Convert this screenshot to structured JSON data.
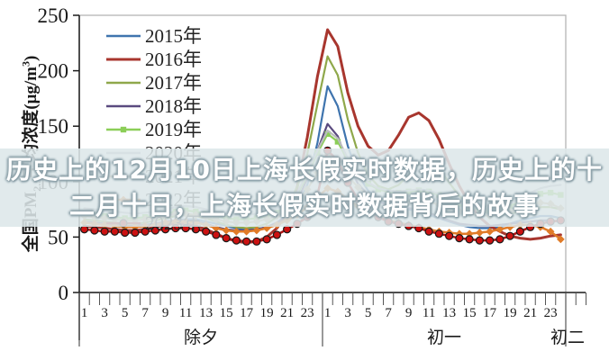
{
  "banner": {
    "line1": "历史上的12月10日上海长假实时数据，历史上的十",
    "line2": "二月十日，上海长假实时数据背后的故事"
  },
  "chart_data": {
    "type": "line",
    "title": "",
    "ylabel": "全国PM2.5平均浓度(μg/m³)",
    "ylabel_parts": {
      "prefix": "全国PM",
      "sub": "2.5",
      "mid": "平均浓度(μg/m",
      "sup": "3",
      "suffix": ")"
    },
    "ylim": [
      0,
      250
    ],
    "yticks": [
      0,
      50,
      100,
      150,
      200,
      250
    ],
    "hours_per_day": 24,
    "hour_tick_labels": [
      "1",
      "3",
      "5",
      "7",
      "9",
      "11",
      "13",
      "15",
      "17",
      "19",
      "21",
      "23"
    ],
    "day_labels": [
      "除夕",
      "初一",
      "初二"
    ],
    "grid": false,
    "legend_position": "upper-left-inside",
    "axis_color": "#1a1a1a",
    "box_color": "#b5b5b5",
    "series": [
      {
        "name": "2015年",
        "color": "#3f74ae",
        "marker": "none",
        "width": 2.2,
        "values": [
          63,
          62,
          61,
          60,
          59,
          59,
          60,
          61,
          63,
          65,
          66,
          66,
          64,
          62,
          60,
          58,
          57,
          57,
          59,
          62,
          68,
          78,
          97,
          135,
          186,
          168,
          132,
          106,
          92,
          84,
          79,
          77,
          75,
          73,
          70,
          67,
          64,
          61,
          59,
          58,
          58,
          59,
          62,
          65,
          67,
          69,
          69,
          67
        ]
      },
      {
        "name": "2016年",
        "color": "#a8362e",
        "marker": "none",
        "width": 3,
        "values": [
          60,
          59,
          58,
          57,
          56,
          56,
          57,
          59,
          61,
          62,
          62,
          60,
          57,
          53,
          49,
          46,
          45,
          46,
          50,
          58,
          72,
          95,
          140,
          195,
          237,
          222,
          180,
          150,
          132,
          124,
          128,
          142,
          158,
          162,
          155,
          138,
          116,
          96,
          80,
          68,
          60,
          55,
          51,
          49,
          48,
          49,
          51,
          52
        ]
      },
      {
        "name": "2017年",
        "color": "#8fa84b",
        "marker": "none",
        "width": 2.2,
        "values": [
          66,
          65,
          64,
          63,
          62,
          62,
          63,
          65,
          67,
          69,
          70,
          69,
          67,
          64,
          61,
          59,
          58,
          59,
          62,
          68,
          78,
          95,
          125,
          170,
          213,
          196,
          156,
          126,
          106,
          96,
          93,
          97,
          106,
          116,
          119,
          112,
          99,
          87,
          79,
          74,
          71,
          70,
          71,
          73,
          75,
          77,
          77,
          75
        ]
      },
      {
        "name": "2018年",
        "color": "#5a4a7f",
        "marker": "none",
        "width": 2.2,
        "values": [
          64,
          63,
          62,
          61,
          60,
          60,
          61,
          62,
          64,
          65,
          65,
          64,
          62,
          59,
          57,
          56,
          56,
          57,
          59,
          63,
          70,
          82,
          103,
          128,
          152,
          141,
          116,
          98,
          88,
          82,
          79,
          77,
          76,
          75,
          72,
          68,
          65,
          62,
          61,
          60,
          60,
          61,
          62,
          63,
          64,
          65,
          65,
          64
        ]
      },
      {
        "name": "2019年",
        "color": "#8cce58",
        "marker": "square",
        "width": 2.2,
        "values": [
          71,
          70,
          69,
          68,
          67,
          67,
          68,
          69,
          71,
          73,
          74,
          73,
          71,
          69,
          67,
          66,
          66,
          67,
          69,
          72,
          78,
          88,
          106,
          126,
          143,
          136,
          119,
          106,
          98,
          93,
          91,
          90,
          91,
          92,
          91,
          88,
          84,
          80,
          77,
          75,
          74,
          75,
          78,
          82,
          86,
          89,
          90,
          88
        ]
      },
      {
        "name": "2020年",
        "color": "#b9bcbd",
        "marker": "none",
        "width": 2.2,
        "values": [
          76,
          75,
          74,
          73,
          72,
          71,
          72,
          73,
          75,
          77,
          78,
          77,
          75,
          73,
          71,
          70,
          70,
          71,
          73,
          76,
          81,
          90,
          108,
          128,
          146,
          139,
          121,
          108,
          99,
          94,
          92,
          91,
          92,
          93,
          92,
          89,
          85,
          81,
          78,
          76,
          75,
          76,
          80,
          85,
          90,
          94,
          96,
          97
        ]
      },
      {
        "name": "2021年",
        "color": "#c9b18c",
        "marker": "diamond",
        "width": 2,
        "values": [
          69,
          68,
          67,
          66,
          65,
          65,
          66,
          67,
          69,
          71,
          71,
          70,
          68,
          66,
          64,
          63,
          63,
          64,
          66,
          69,
          74,
          81,
          93,
          108,
          124,
          118,
          105,
          95,
          88,
          84,
          82,
          81,
          82,
          83,
          82,
          79,
          76,
          73,
          71,
          70,
          69,
          70,
          73,
          76,
          79,
          81,
          80,
          76
        ]
      },
      {
        "name": "2022年",
        "color": "#e07b28",
        "marker": "diamond",
        "width": 2.5,
        "values": [
          63,
          62,
          61,
          60,
          59,
          59,
          60,
          61,
          63,
          64,
          64,
          63,
          61,
          58,
          56,
          55,
          55,
          56,
          58,
          61,
          65,
          70,
          77,
          86,
          94,
          91,
          84,
          78,
          72,
          68,
          65,
          63,
          61,
          59,
          57,
          55,
          54,
          53,
          53,
          54,
          55,
          57,
          59,
          61,
          61,
          59,
          55,
          48
        ]
      },
      {
        "name": "2023年",
        "color": "#b01414",
        "marker": "circle",
        "marker_fill": "#cc1111",
        "marker_edge": "#1a1a1a",
        "width": 2.5,
        "values": [
          57,
          56,
          55,
          55,
          54,
          54,
          55,
          56,
          57,
          58,
          58,
          57,
          55,
          52,
          49,
          47,
          46,
          46,
          48,
          52,
          57,
          62,
          68,
          88,
          128,
          119,
          99,
          84,
          74,
          68,
          64,
          62,
          60,
          58,
          55,
          53,
          51,
          49,
          48,
          47,
          47,
          48,
          51,
          55,
          59,
          62,
          64,
          65
        ]
      }
    ]
  }
}
